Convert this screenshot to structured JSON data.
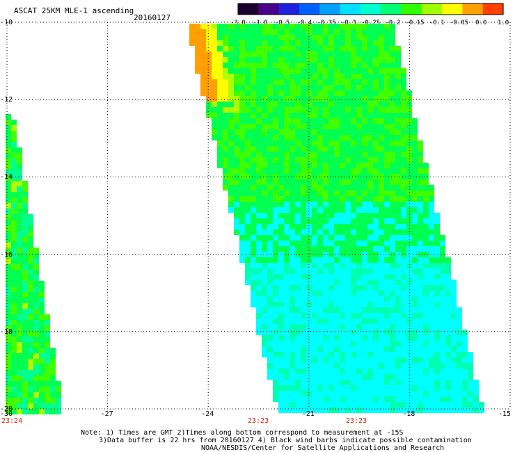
{
  "header": {
    "title": "ASCAT 25KM MLE-1 ascending",
    "date": "20160127"
  },
  "colorbar": {
    "labels": [
      "-3.0",
      "-1.0",
      "-0.5",
      "-0.4",
      "-0.35",
      "-0.3",
      "-0.25",
      "-0.2",
      "-0.15",
      "-0.1",
      "-0.05",
      "0.0",
      "1.0"
    ],
    "colors": [
      "#1a0030",
      "#4b008a",
      "#2020e0",
      "#0060ff",
      "#00a0ff",
      "#00e0ff",
      "#00ffd0",
      "#00ff70",
      "#30ff00",
      "#a0ff00",
      "#ffff00",
      "#ffa000",
      "#ff4000"
    ]
  },
  "map": {
    "lon_range": [
      -30,
      -15
    ],
    "lat_range": [
      -20,
      -10
    ],
    "lon_ticks": [
      "-30",
      "-27",
      "-24",
      "-21",
      "-18",
      "-15"
    ],
    "lat_ticks": [
      "-10",
      "-12",
      "-14",
      "-16",
      "-18",
      "-20"
    ],
    "swath_times": [
      "23:24",
      "23:23",
      "23:23"
    ]
  },
  "footer": {
    "line1": "Note: 1) Times are GMT 2)Times along bottom correspond to measurement at -15S",
    "line2": "3)Data buffer is 22 hrs from 20160127 4) Black wind barbs indicate possible contamination",
    "line3": "NOAA/NESDIS/Center for Satellite Applications and Research"
  }
}
